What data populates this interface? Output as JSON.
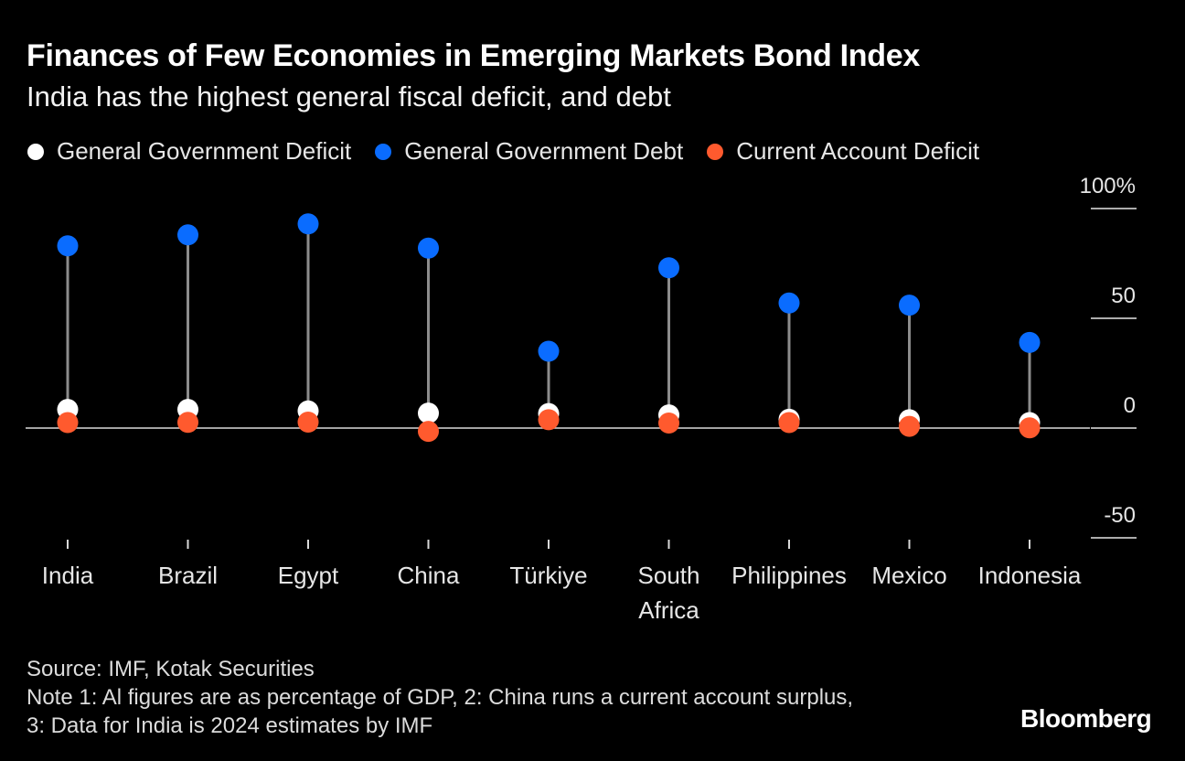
{
  "title": "Finances of Few Economies in Emerging Markets Bond Index",
  "subtitle": "India has the highest general fiscal deficit, and debt",
  "legend": [
    {
      "label": "General Government Deficit",
      "color": "#ffffff"
    },
    {
      "label": "General Government Debt",
      "color": "#0a6cff"
    },
    {
      "label": "Current Account Deficit",
      "color": "#ff5a2e"
    }
  ],
  "chart_data": {
    "type": "scatter",
    "categories": [
      [
        "India"
      ],
      [
        "Brazil"
      ],
      [
        "Egypt"
      ],
      [
        "China"
      ],
      [
        "Türkiye"
      ],
      [
        "South",
        "Africa"
      ],
      [
        "Philippines"
      ],
      [
        "Mexico"
      ],
      [
        "Indonesia"
      ]
    ],
    "series": [
      {
        "name": "General Government Deficit",
        "color": "#ffffff",
        "values": [
          8.5,
          8.5,
          7.8,
          6.8,
          6.6,
          6.0,
          4.0,
          3.8,
          2.5
        ]
      },
      {
        "name": "General Government Debt",
        "color": "#0a6cff",
        "values": [
          83,
          88,
          93,
          82,
          35,
          73,
          57,
          56,
          39
        ]
      },
      {
        "name": "Current Account Deficit",
        "color": "#ff5a2e",
        "values": [
          2.5,
          2.6,
          2.7,
          -1.5,
          3.8,
          2.3,
          2.5,
          0.8,
          0.1
        ]
      }
    ],
    "y_ticks": [
      {
        "value": 100,
        "label": "100%"
      },
      {
        "value": 50,
        "label": "50"
      },
      {
        "value": 0,
        "label": "0"
      },
      {
        "value": -50,
        "label": "-50"
      }
    ],
    "ylim": [
      -50,
      100
    ],
    "grid": false,
    "legend_position": "top-left",
    "y_axis_side": "right"
  },
  "footer": {
    "source": "Source: IMF, Kotak Securities",
    "note_line1": "Note 1: Al figures are as percentage of GDP, 2: China runs a current account surplus,",
    "note_line2": "3: Data for India is 2024 estimates by IMF"
  },
  "brand": "Bloomberg"
}
